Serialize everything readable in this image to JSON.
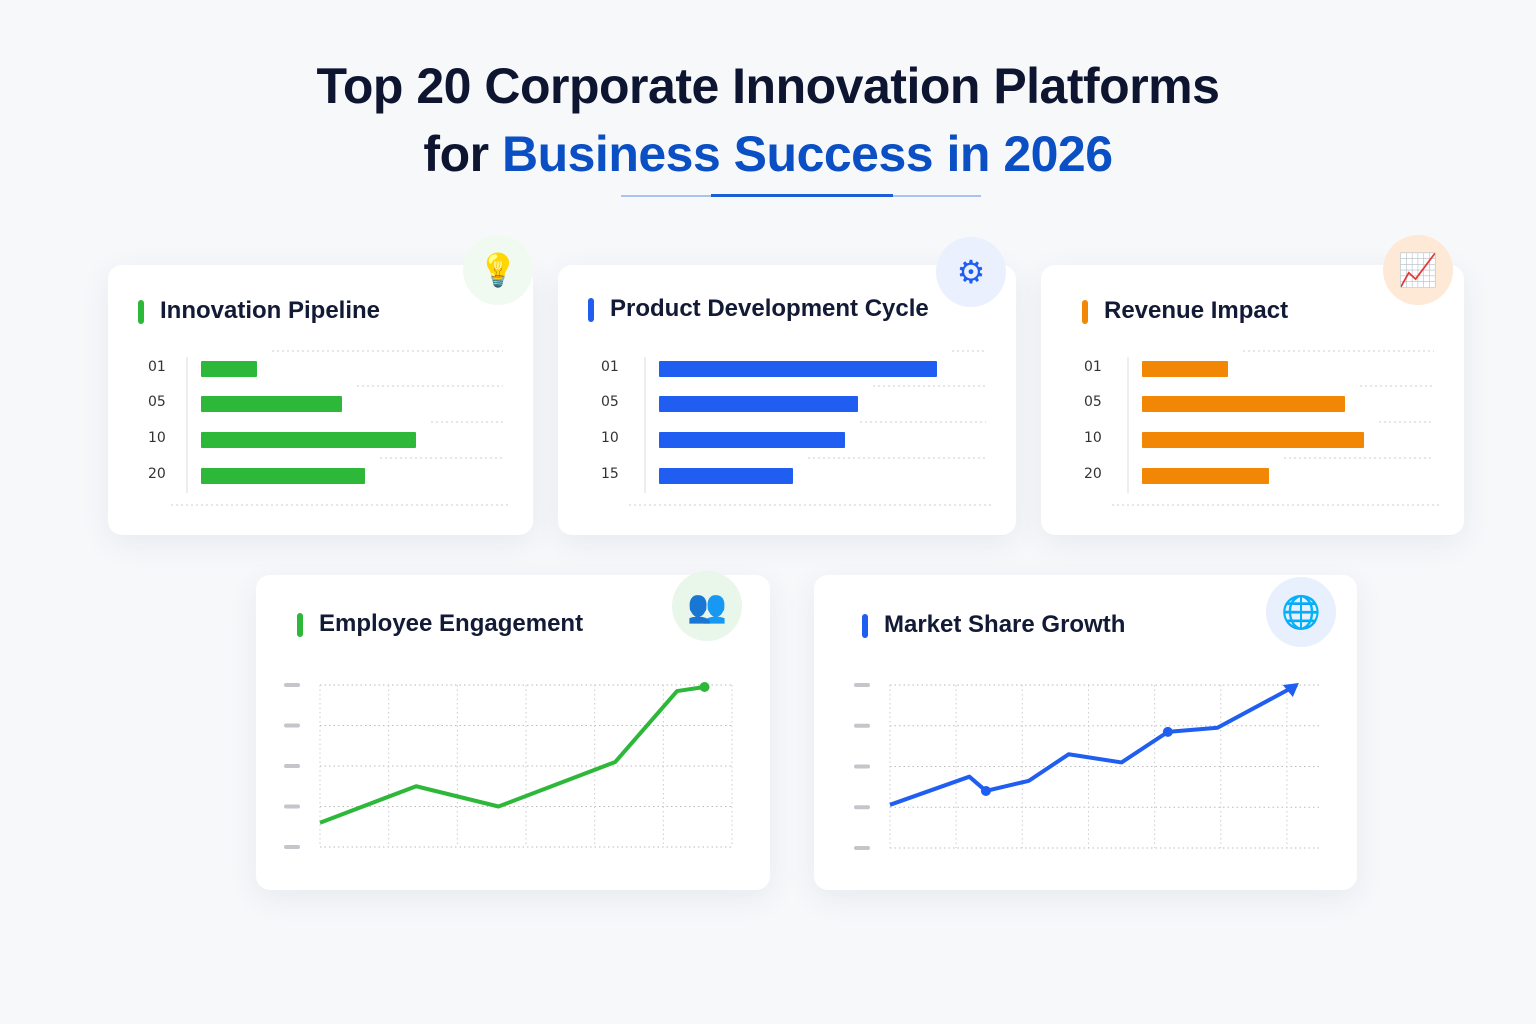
{
  "title": {
    "line1": "Top 20 Corporate Innovation Platforms",
    "line2_prefix": "for ",
    "line2_accent": "Business Success in 2026"
  },
  "colors": {
    "green": "#2eb83a",
    "blue": "#1f5ef0",
    "orange": "#f28705",
    "navy": "#0e1530",
    "accent": "#0b4fc4"
  },
  "chart_data": [
    {
      "type": "bar",
      "title": "Innovation Pipeline",
      "icon": "lightbulb-icon",
      "orientation": "horizontal",
      "categories": [
        "01",
        "05",
        "10",
        "20"
      ],
      "values": [
        56,
        141,
        215,
        164
      ],
      "color": "#2eb83a"
    },
    {
      "type": "bar",
      "title": "Product Development Cycle",
      "icon": "gear-icon",
      "orientation": "horizontal",
      "categories": [
        "01",
        "05",
        "10",
        "15"
      ],
      "values": [
        278,
        199,
        186,
        134
      ],
      "color": "#1f5ef0"
    },
    {
      "type": "bar",
      "title": "Revenue Impact",
      "icon": "bar-chart-growth-icon",
      "orientation": "horizontal",
      "categories": [
        "01",
        "05",
        "10",
        "20"
      ],
      "values": [
        86,
        203,
        222,
        127
      ],
      "color": "#f28705"
    },
    {
      "type": "line",
      "title": "Employee Engagement",
      "icon": "team-icon",
      "x": [
        0,
        1.4,
        2.6,
        4.3,
        5.2,
        5.6
      ],
      "y": [
        0.6,
        1.5,
        1.0,
        2.1,
        3.85,
        3.95
      ],
      "ylim": [
        0,
        4
      ],
      "xlim": [
        0,
        6
      ],
      "grid": true,
      "color": "#2eb83a"
    },
    {
      "type": "line",
      "title": "Market Share Growth",
      "icon": "globe-growth-icon",
      "x": [
        0,
        1.2,
        1.45,
        2.1,
        2.7,
        3.5,
        4.2,
        4.95,
        6.15
      ],
      "y": [
        1.06,
        1.75,
        1.4,
        1.65,
        2.3,
        2.1,
        2.85,
        2.95,
        4.0
      ],
      "ylim": [
        0,
        4
      ],
      "xlim": [
        0,
        6.5
      ],
      "grid": true,
      "color": "#1f5ef0"
    }
  ]
}
